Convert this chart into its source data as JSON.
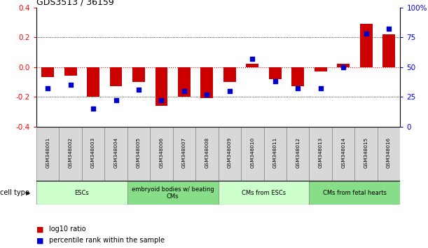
{
  "title": "GDS3513 / 36159",
  "samples": [
    "GSM348001",
    "GSM348002",
    "GSM348003",
    "GSM348004",
    "GSM348005",
    "GSM348006",
    "GSM348007",
    "GSM348008",
    "GSM348009",
    "GSM348010",
    "GSM348011",
    "GSM348012",
    "GSM348013",
    "GSM348014",
    "GSM348015",
    "GSM348016"
  ],
  "log10_ratio": [
    -0.07,
    -0.06,
    -0.2,
    -0.13,
    -0.1,
    -0.26,
    -0.2,
    -0.21,
    -0.1,
    0.02,
    -0.08,
    -0.13,
    -0.03,
    0.02,
    0.29,
    0.22
  ],
  "percentile_rank": [
    32,
    35,
    15,
    22,
    31,
    22,
    30,
    27,
    30,
    57,
    38,
    32,
    32,
    50,
    78,
    82
  ],
  "bar_color": "#cc0000",
  "dot_color": "#0000cc",
  "ylim_left": [
    -0.4,
    0.4
  ],
  "ylim_right": [
    0,
    100
  ],
  "yticks_left": [
    -0.4,
    -0.2,
    0.0,
    0.2,
    0.4
  ],
  "yticks_right": [
    0,
    25,
    50,
    75,
    100
  ],
  "ytick_labels_right": [
    "0",
    "25",
    "50",
    "75",
    "100%"
  ],
  "cell_groups": [
    {
      "label": "ESCs",
      "start": 0,
      "end": 3,
      "color": "#ccffcc"
    },
    {
      "label": "embryoid bodies w/ beating\nCMs",
      "start": 4,
      "end": 7,
      "color": "#88dd88"
    },
    {
      "label": "CMs from ESCs",
      "start": 8,
      "end": 11,
      "color": "#ccffcc"
    },
    {
      "label": "CMs from fetal hearts",
      "start": 12,
      "end": 15,
      "color": "#88dd88"
    }
  ],
  "legend_ratio_label": "log10 ratio",
  "legend_pct_label": "percentile rank within the sample",
  "cell_type_label": "cell type"
}
